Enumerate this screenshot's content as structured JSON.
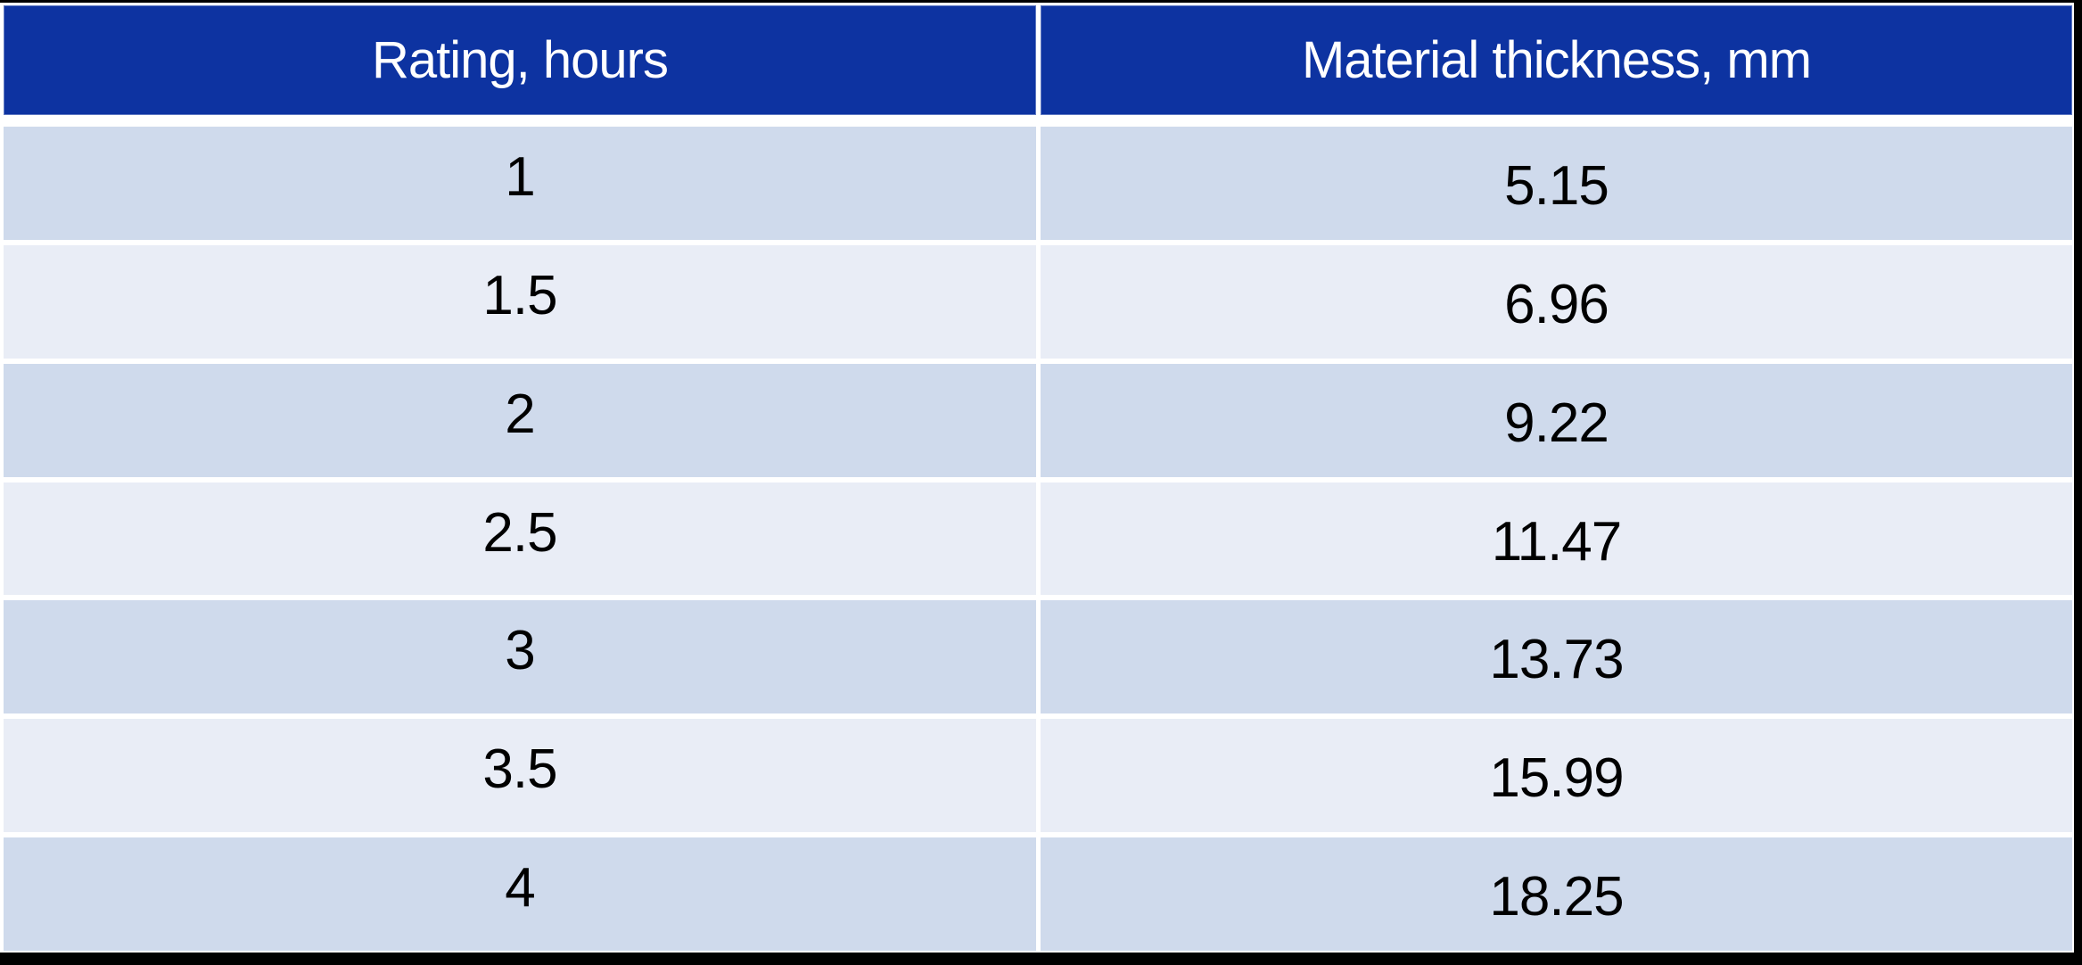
{
  "table": {
    "columns": [
      {
        "label": "Rating, hours"
      },
      {
        "label": "Material thickness, mm"
      }
    ],
    "rows": [
      {
        "rating": "1",
        "thickness": "5.15"
      },
      {
        "rating": "1.5",
        "thickness": "6.96"
      },
      {
        "rating": "2",
        "thickness": "9.22"
      },
      {
        "rating": "2.5",
        "thickness": "11.47"
      },
      {
        "rating": "3",
        "thickness": "13.73"
      },
      {
        "rating": "3.5",
        "thickness": "15.99"
      },
      {
        "rating": "4",
        "thickness": "18.25"
      }
    ]
  },
  "colors": {
    "header_bg": "#0d33a1",
    "row_band_dark": "#cfdaec",
    "row_band_light": "#e9edf6",
    "header_text": "#ffffff",
    "body_text": "#000000",
    "frame": "#000000",
    "gap": "#ffffff"
  },
  "chart_data": {
    "type": "table",
    "title": "",
    "columns": [
      "Rating, hours",
      "Material thickness, mm"
    ],
    "rows": [
      [
        1,
        5.15
      ],
      [
        1.5,
        6.96
      ],
      [
        2,
        9.22
      ],
      [
        2.5,
        11.47
      ],
      [
        3,
        13.73
      ],
      [
        3.5,
        15.99
      ],
      [
        4,
        18.25
      ]
    ],
    "layout_hints": {
      "header_style": "dark-blue banner, white text",
      "row_banding": [
        "#cfdaec",
        "#e9edf6"
      ],
      "cell_text_alignment": "center"
    }
  }
}
